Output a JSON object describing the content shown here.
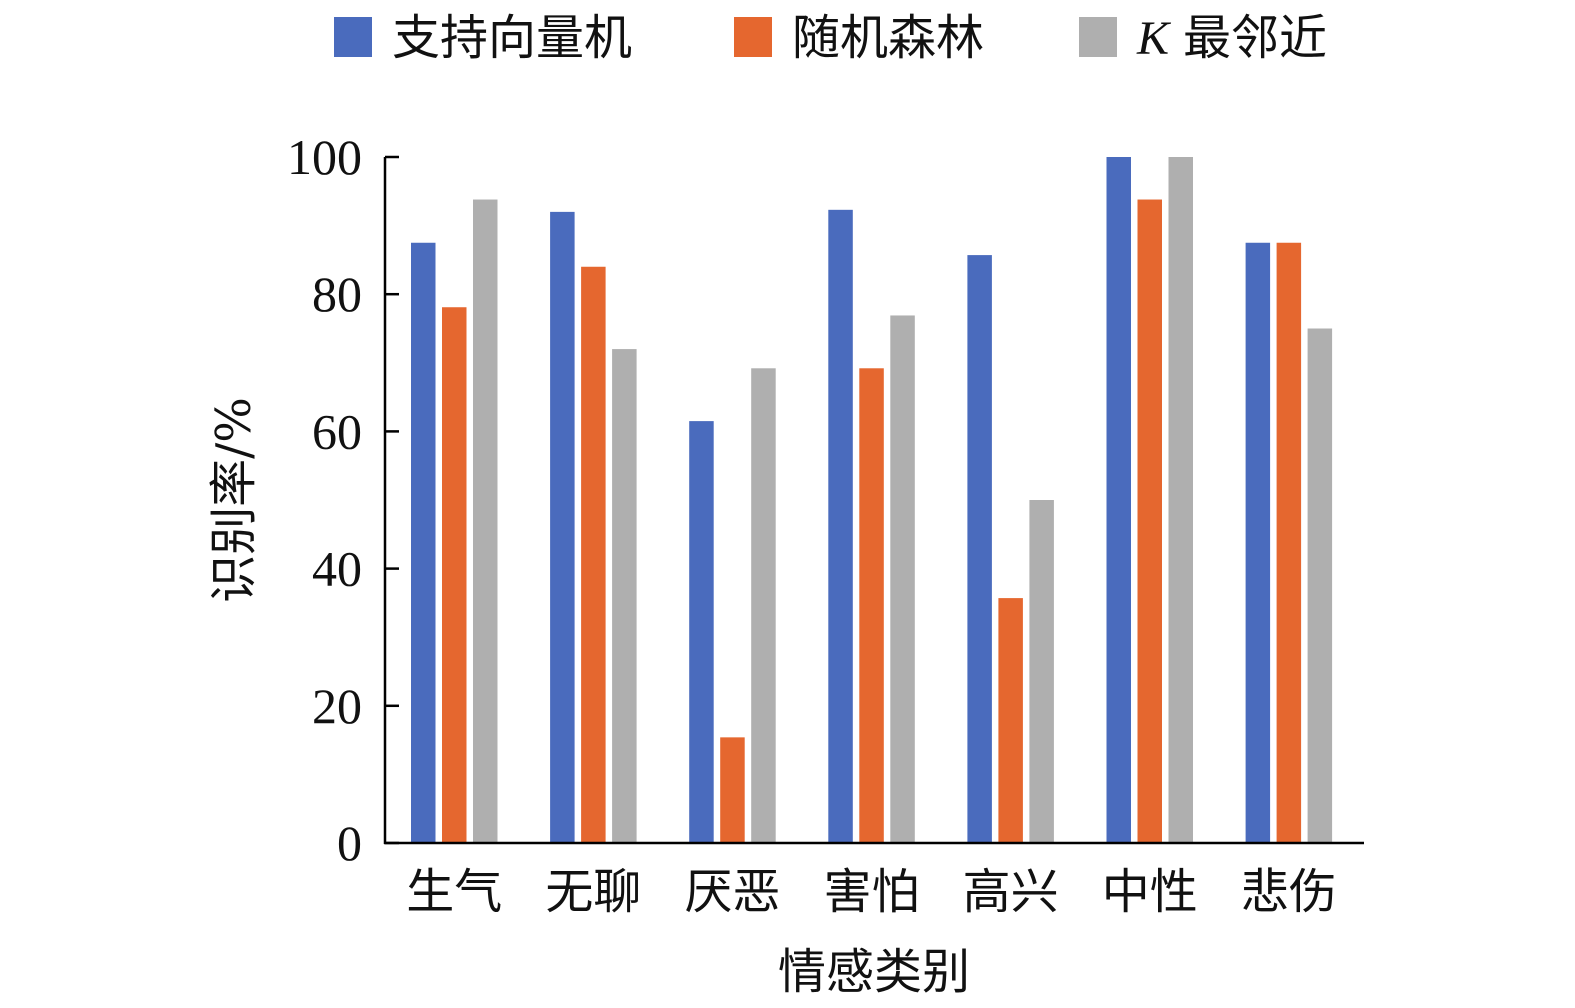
{
  "chart_data": {
    "type": "bar",
    "title": "",
    "xlabel": "情感类别",
    "ylabel": "识别率/%",
    "ylim": [
      0,
      100
    ],
    "yticks": [
      "0",
      "20",
      "40",
      "60",
      "80",
      "100"
    ],
    "categories": [
      "生气",
      "无聊",
      "厌恶",
      "害怕",
      "高兴",
      "中性",
      "悲伤"
    ],
    "series": [
      {
        "name": "支持向量机",
        "values": [
          87.5,
          92,
          61.5,
          92.3,
          85.7,
          100,
          87.5
        ]
      },
      {
        "name": "随机森林",
        "values": [
          78.1,
          84,
          15.4,
          69.2,
          35.7,
          93.8,
          87.5
        ]
      },
      {
        "name": "K 最邻近",
        "name_prefix": "K",
        "name_rest": "最邻近",
        "values": [
          93.8,
          72,
          69.2,
          76.9,
          50,
          100,
          75
        ]
      }
    ],
    "colors": [
      "#4a6bbd",
      "#e5672f",
      "#afafaf"
    ],
    "legend_position": "top",
    "grid": false
  }
}
